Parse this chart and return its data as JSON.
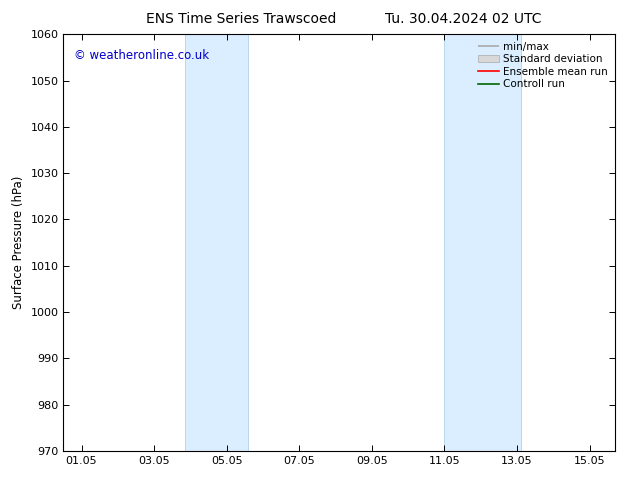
{
  "title_left": "ENS Time Series Trawscoed",
  "title_right": "Tu. 30.04.2024 02 UTC",
  "ylabel": "Surface Pressure (hPa)",
  "ylim": [
    970,
    1060
  ],
  "yticks": [
    970,
    980,
    990,
    1000,
    1010,
    1020,
    1030,
    1040,
    1050,
    1060
  ],
  "xlim": [
    0.5,
    15.7
  ],
  "xtick_labels": [
    "01.05",
    "03.05",
    "05.05",
    "07.05",
    "09.05",
    "11.05",
    "13.05",
    "15.05"
  ],
  "xtick_positions_day": [
    1,
    3,
    5,
    7,
    9,
    11,
    13,
    15
  ],
  "shaded_bands": [
    {
      "x_start_day": 3.85,
      "x_end_day": 5.6
    },
    {
      "x_start_day": 11.0,
      "x_end_day": 13.1
    }
  ],
  "shade_color": "#daeeff",
  "shade_edge_color": "#b8d8f0",
  "watermark_text": "© weatheronline.co.uk",
  "watermark_color": "#0000cc",
  "legend_labels": [
    "min/max",
    "Standard deviation",
    "Ensemble mean run",
    "Controll run"
  ],
  "legend_line_color": "#aaaaaa",
  "legend_fill_color": "#d8d8d8",
  "legend_red": "#ff0000",
  "legend_green": "#006600",
  "background_color": "#ffffff",
  "title_fontsize": 10,
  "axis_label_fontsize": 8.5,
  "tick_fontsize": 8,
  "watermark_fontsize": 8.5,
  "legend_fontsize": 7.5
}
